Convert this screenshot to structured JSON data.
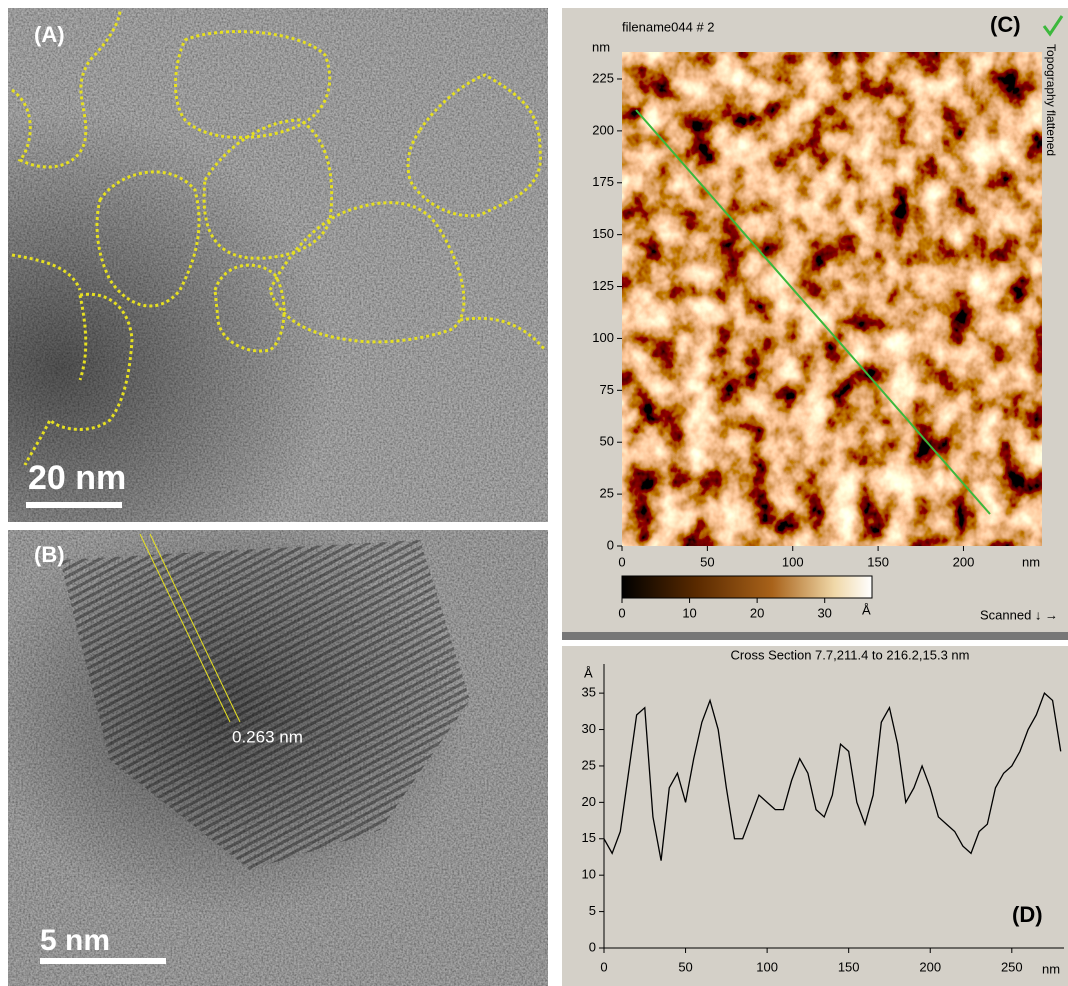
{
  "panels": {
    "A": {
      "label": "(A)",
      "scale_bar": "20 nm"
    },
    "B": {
      "label": "(B)",
      "annotation": "0.263 nm",
      "scale_bar": "5 nm"
    },
    "C": {
      "label": "(C)",
      "filename": "filename044 # 2",
      "side_label": "Topography flattened",
      "y_unit": "nm",
      "x_unit": "nm",
      "xlim": [
        0,
        246
      ],
      "xticks": [
        0,
        50,
        100,
        150,
        200
      ],
      "ylim": [
        0,
        238
      ],
      "yticks": [
        0,
        25,
        50,
        75,
        100,
        125,
        150,
        175,
        200,
        225
      ],
      "colorbar": {
        "lim": [
          0,
          37
        ],
        "ticks": [
          0,
          10,
          20,
          30
        ],
        "unit": "Å"
      },
      "status": "Scanned ↓ →"
    }
  },
  "chart_data": {
    "type": "line",
    "title": "Cross Section 7.7,211.4 to 216.2,15.3 nm",
    "label": "(D)",
    "x_unit": "nm",
    "y_unit": "Å",
    "x": [
      0,
      5,
      10,
      15,
      20,
      25,
      30,
      35,
      40,
      45,
      50,
      55,
      60,
      65,
      70,
      75,
      80,
      85,
      90,
      95,
      100,
      105,
      110,
      115,
      120,
      125,
      130,
      135,
      140,
      145,
      150,
      155,
      160,
      165,
      170,
      175,
      180,
      185,
      190,
      195,
      200,
      205,
      210,
      215,
      220,
      225,
      230,
      235,
      240,
      245,
      250,
      255,
      260,
      265,
      270,
      275,
      280
    ],
    "series": [
      {
        "color": "#000000",
        "values": [
          15,
          13,
          16,
          24,
          32,
          33,
          18,
          12,
          22,
          24,
          20,
          26,
          31,
          34,
          30,
          22,
          15,
          15,
          18,
          21,
          20,
          19,
          19,
          23,
          26,
          24,
          19,
          18,
          21,
          28,
          27,
          20,
          17,
          21,
          31,
          33,
          28,
          20,
          22,
          25,
          22,
          18,
          17,
          16,
          14,
          13,
          16,
          17,
          22,
          24,
          25,
          27,
          30,
          32,
          35,
          34,
          27
        ]
      }
    ],
    "xlim": [
      0,
      282
    ],
    "xticks": [
      0,
      50,
      100,
      150,
      200,
      250
    ],
    "ylim": [
      0,
      39
    ],
    "yticks": [
      0,
      5,
      10,
      15,
      20,
      25,
      30,
      35
    ]
  }
}
